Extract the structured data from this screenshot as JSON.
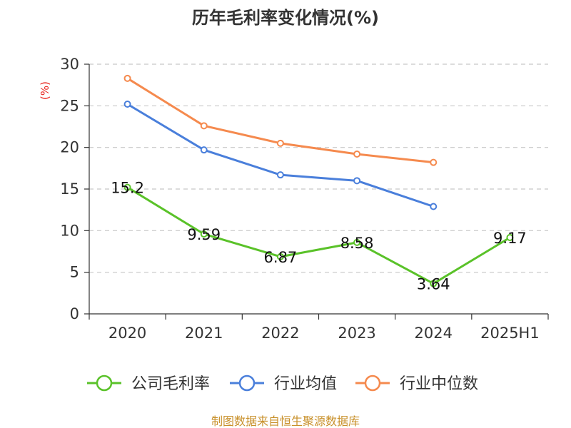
{
  "chart_data": {
    "type": "line",
    "title": "历年毛利率变化情况(%)",
    "ylabel": "(%)",
    "xlabel": "",
    "categories": [
      "2020",
      "2021",
      "2022",
      "2023",
      "2024",
      "2025H1"
    ],
    "ylim": [
      0,
      30
    ],
    "yticks": [
      0,
      5,
      10,
      15,
      20,
      25,
      30
    ],
    "grid": true,
    "legend_position": "bottom",
    "series": [
      {
        "name": "公司毛利率",
        "color": "#5ac229",
        "values": [
          15.2,
          9.59,
          6.87,
          8.58,
          3.64,
          9.17
        ],
        "labels": [
          "15.2",
          "9.59",
          "6.87",
          "8.58",
          "3.64",
          "9.17"
        ]
      },
      {
        "name": "行业均值",
        "color": "#4a7fdb",
        "values": [
          25.2,
          19.7,
          16.7,
          16.0,
          12.9,
          null
        ]
      },
      {
        "name": "行业中位数",
        "color": "#f58a4e",
        "values": [
          28.3,
          22.6,
          20.5,
          19.2,
          18.2,
          null
        ]
      }
    ]
  },
  "source": "制图数据来自恒生聚源数据库"
}
